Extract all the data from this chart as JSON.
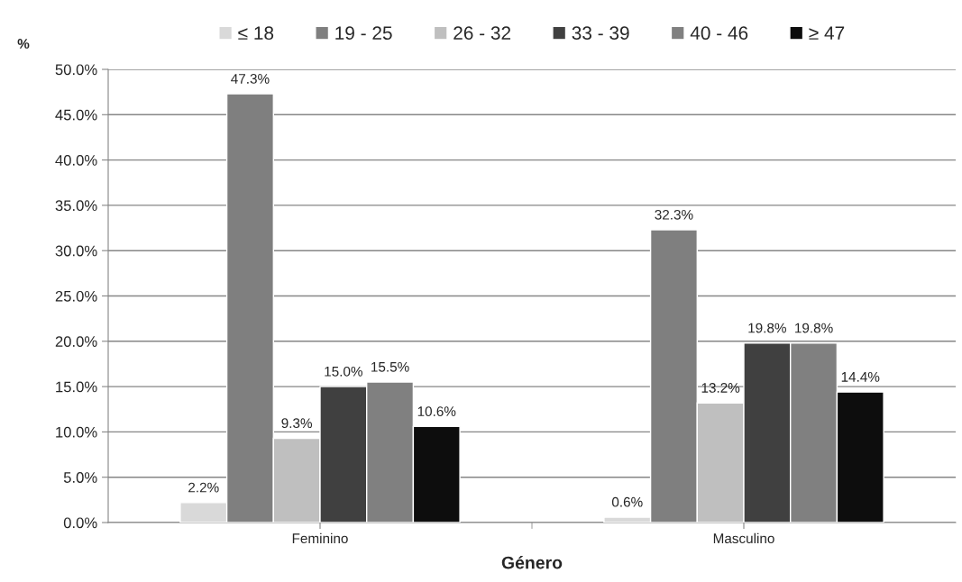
{
  "chart_data": {
    "type": "bar",
    "xlabel": "Género",
    "ylabel": "%",
    "categories": [
      "Feminino",
      "Masculino"
    ],
    "series": [
      {
        "name": "≤ 18",
        "color": "#d9d9d9",
        "values": [
          2.2,
          0.6
        ],
        "value_labels": [
          "2.2%",
          "0.6%"
        ]
      },
      {
        "name": "19 - 25",
        "color": "#7f7f7f",
        "values": [
          47.3,
          32.3
        ],
        "value_labels": [
          "47.3%",
          "32.3%"
        ]
      },
      {
        "name": "26 - 32",
        "color": "#bfbfbf",
        "values": [
          9.3,
          13.2
        ],
        "value_labels": [
          "9.3%",
          "13.2%"
        ]
      },
      {
        "name": "33 - 39",
        "color": "#404040",
        "values": [
          15.0,
          19.8
        ],
        "value_labels": [
          "15.0%",
          "19.8%"
        ]
      },
      {
        "name": "40 - 46",
        "color": "#808080",
        "values": [
          15.5,
          19.8
        ],
        "value_labels": [
          "15.5%",
          "19.8%"
        ]
      },
      {
        "name": "≥ 47",
        "color": "#0d0d0d",
        "values": [
          10.6,
          14.4
        ],
        "value_labels": [
          "10.6%",
          "14.4%"
        ]
      }
    ],
    "ylim": [
      0,
      50
    ],
    "yticks": [
      {
        "value": 0,
        "label": "0.0%"
      },
      {
        "value": 5,
        "label": "5.0%"
      },
      {
        "value": 10,
        "label": "10.0%"
      },
      {
        "value": 15,
        "label": "15.0%"
      },
      {
        "value": 20,
        "label": "20.0%"
      },
      {
        "value": 25,
        "label": "25.0%"
      },
      {
        "value": 30,
        "label": "30.0%"
      },
      {
        "value": 35,
        "label": "35.0%"
      },
      {
        "value": 40,
        "label": "40.0%"
      },
      {
        "value": 45,
        "label": "45.0%"
      },
      {
        "value": 50,
        "label": "50.0%"
      }
    ],
    "grid": "y",
    "legend": "top"
  }
}
